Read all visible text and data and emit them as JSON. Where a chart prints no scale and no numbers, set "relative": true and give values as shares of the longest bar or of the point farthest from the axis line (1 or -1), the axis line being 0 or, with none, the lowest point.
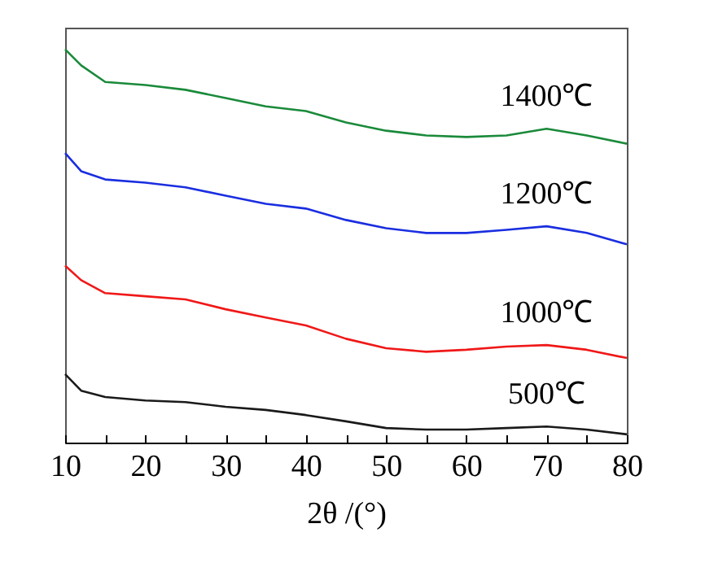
{
  "chart_data": {
    "type": "line",
    "relative": true,
    "xlabel": "2θ /(°)",
    "x": [
      10,
      12,
      15,
      20,
      25,
      30,
      35,
      40,
      45,
      50,
      55,
      60,
      65,
      70,
      75,
      80
    ],
    "xlim": [
      10,
      80
    ],
    "xticks": [
      10,
      {
        "value": 15,
        "label": null
      },
      20,
      {
        "value": 25,
        "label": null
      },
      30,
      {
        "value": 35,
        "label": null
      },
      40,
      {
        "value": 45,
        "label": null
      },
      50,
      {
        "value": 55,
        "label": null
      },
      60,
      {
        "value": 65,
        "label": null
      },
      70,
      {
        "value": 75,
        "label": null
      },
      80
    ],
    "grid": false,
    "legend": false,
    "marker": "none",
    "line_style": "solid",
    "series": [
      {
        "name": "1400℃",
        "color": "#1a8a3a",
        "values": [
          1.0,
          0.959,
          0.917,
          0.909,
          0.897,
          0.876,
          0.855,
          0.843,
          0.814,
          0.793,
          0.781,
          0.777,
          0.781,
          0.798,
          0.781,
          0.76
        ]
      },
      {
        "name": "1200℃",
        "color": "#1a2ee0",
        "values": [
          0.736,
          0.69,
          0.669,
          0.661,
          0.649,
          0.628,
          0.607,
          0.595,
          0.566,
          0.545,
          0.533,
          0.533,
          0.541,
          0.55,
          0.533,
          0.504
        ]
      },
      {
        "name": "1000℃",
        "color": "#f01818",
        "values": [
          0.45,
          0.413,
          0.38,
          0.372,
          0.364,
          0.339,
          0.318,
          0.298,
          0.264,
          0.24,
          0.231,
          0.236,
          0.244,
          0.248,
          0.236,
          0.215
        ]
      },
      {
        "name": "500℃",
        "color": "#1a1a1a",
        "values": [
          0.174,
          0.132,
          0.116,
          0.107,
          0.103,
          0.091,
          0.083,
          0.07,
          0.054,
          0.037,
          0.033,
          0.033,
          0.037,
          0.041,
          0.033,
          0.021
        ]
      }
    ]
  }
}
